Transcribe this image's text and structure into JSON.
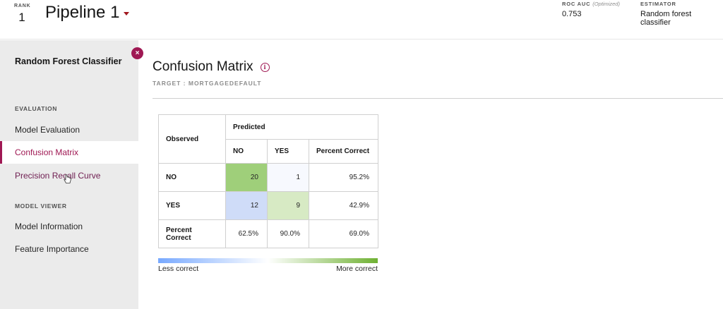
{
  "header": {
    "rank_label": "RANK",
    "rank_value": "1",
    "pipeline_title": "Pipeline 1",
    "metrics": [
      {
        "label": "ROC AUC",
        "sub": "(Optimized)",
        "value": "0.753"
      },
      {
        "label": "ESTIMATOR",
        "sub": "",
        "value": "Random forest classifier"
      }
    ]
  },
  "sidebar": {
    "title": "Random Forest Classifier",
    "close_symbol": "×",
    "sections": [
      {
        "label": "EVALUATION",
        "items": [
          "Model Evaluation",
          "Confusion Matrix",
          "Precision Recall Curve"
        ]
      },
      {
        "label": "MODEL VIEWER",
        "items": [
          "Model Information",
          "Feature Importance"
        ]
      }
    ],
    "active_item": "Confusion Matrix"
  },
  "main": {
    "title": "Confusion Matrix",
    "info_symbol": "i",
    "target": "TARGET : MORTGAGEDEFAULT",
    "matrix": {
      "observed_label": "Observed",
      "predicted_label": "Predicted",
      "columns": [
        "NO",
        "YES",
        "Percent Correct"
      ],
      "rows": [
        {
          "label": "NO",
          "cells": [
            "20",
            "1",
            "95.2%"
          ]
        },
        {
          "label": "YES",
          "cells": [
            "12",
            "9",
            "42.9%"
          ]
        },
        {
          "label": "Percent Correct",
          "cells": [
            "62.5%",
            "90.0%",
            "69.0%"
          ]
        }
      ],
      "cell_colors": {
        "correct_strong": "#9fcf7a",
        "correct_light": "#d7eac4",
        "incorrect_strong": "#cfdcf8",
        "incorrect_light": "#f7f9fe"
      }
    },
    "legend": {
      "left": "Less correct",
      "right": "More correct",
      "left_color": "#78a9ff",
      "right_color": "#6fb133"
    }
  },
  "colors": {
    "accent": "#9f1853",
    "sidebar_bg": "#ebebeb"
  }
}
